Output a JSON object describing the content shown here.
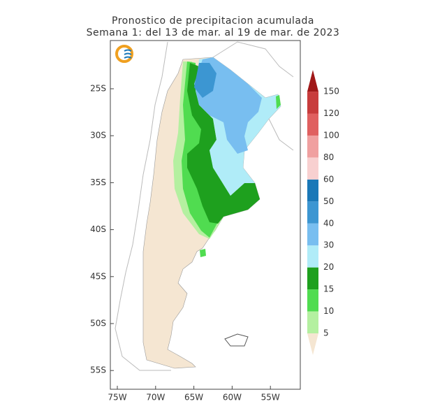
{
  "title": "Pronostico de precipitacion acumulada",
  "subtitle": "Semana 1: del 13 de mar. al 19 de mar. de 2023",
  "map": {
    "lat_ticks": [
      "25S",
      "30S",
      "35S",
      "40S",
      "45S",
      "50S",
      "55S"
    ],
    "lon_ticks": [
      "75W",
      "70W",
      "65W",
      "60W",
      "55W"
    ]
  },
  "colorbar": {
    "levels": [
      5,
      10,
      15,
      20,
      30,
      40,
      50,
      60,
      80,
      100,
      120,
      150
    ],
    "colors": [
      "#f5e6d2",
      "#b4f0a0",
      "#50dc50",
      "#1ea01e",
      "#b0ecf8",
      "#78bef0",
      "#3c96d2",
      "#1a78b8",
      "#f8d0d0",
      "#f0a0a0",
      "#e06060",
      "#c83c3c",
      "#a01818"
    ]
  }
}
